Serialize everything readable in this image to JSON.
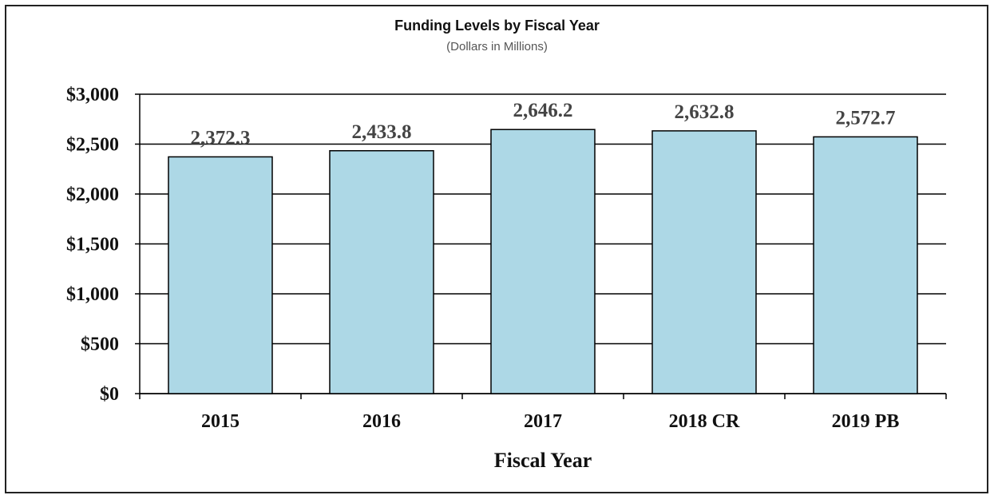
{
  "chart_data": {
    "type": "bar",
    "title": "Funding Levels by Fiscal Year",
    "subtitle": "(Dollars in Millions)",
    "xlabel": "Fiscal Year",
    "ylabel": "",
    "categories": [
      "2015",
      "2016",
      "2017",
      "2018 CR",
      "2019 PB"
    ],
    "values": [
      2372.3,
      2433.8,
      2646.2,
      2632.8,
      2572.7
    ],
    "data_labels": [
      "2,372.3",
      "2,433.8",
      "2,646.2",
      "2,632.8",
      "2,572.7"
    ],
    "ylim": [
      0,
      3000
    ],
    "yticks": [
      0,
      500,
      1000,
      1500,
      2000,
      2500,
      3000
    ],
    "ytick_labels": [
      "$0",
      "$500",
      "$1,000",
      "$1,500",
      "$2,000",
      "$2,500",
      "$3,000"
    ],
    "grid": true,
    "legend": "none",
    "bar_color": "#ADD8E6"
  }
}
